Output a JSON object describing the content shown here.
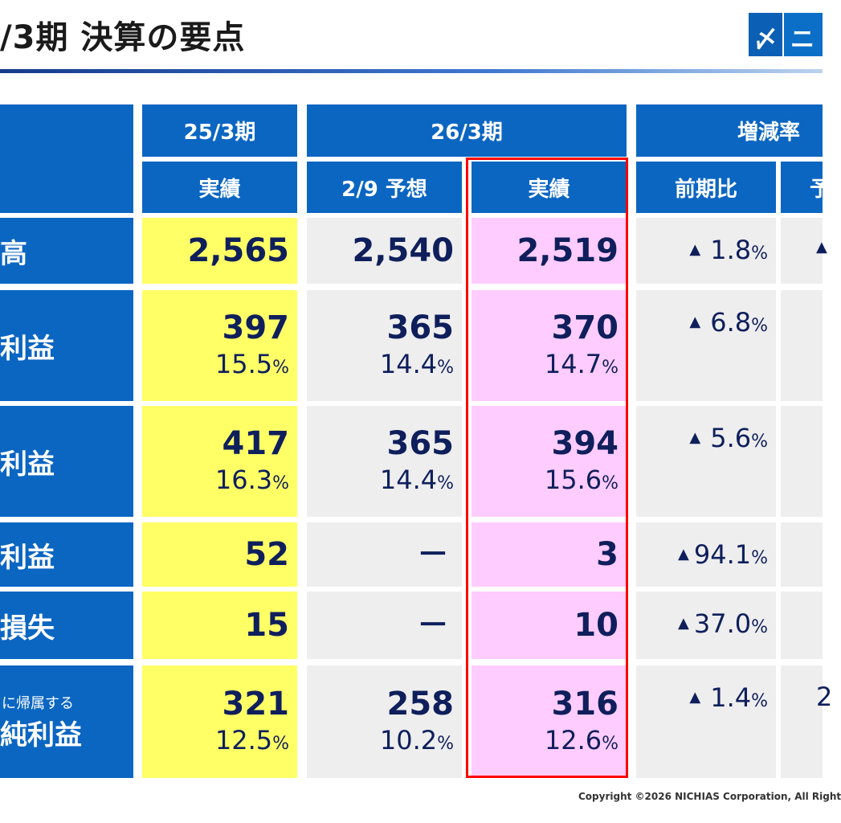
{
  "title": "/3期 決算の要点",
  "logo": {
    "glyph1": "〆",
    "glyph2": "ニ"
  },
  "headers": {
    "prev_year": "25/3期",
    "curr_year": "26/3期",
    "change": "増減率",
    "actual_prev": "実績",
    "forecast": "2/9 予想",
    "actual_curr": "実績",
    "vs_prev": "前期比",
    "vs_forecast": "予"
  },
  "rows": [
    {
      "label": "高",
      "label_small": "",
      "prev": "2,565",
      "prev_pct": "",
      "fc": "2,540",
      "fc_pct": "",
      "curr": "2,519",
      "curr_pct": "",
      "chg": "1.8",
      "chg2": "▲"
    },
    {
      "label": "利益",
      "label_small": "",
      "prev": "397",
      "prev_pct": "15.5",
      "fc": "365",
      "fc_pct": "14.4",
      "curr": "370",
      "curr_pct": "14.7",
      "chg": "6.8",
      "chg2": ""
    },
    {
      "label": "利益",
      "label_small": "",
      "prev": "417",
      "prev_pct": "16.3",
      "fc": "365",
      "fc_pct": "14.4",
      "curr": "394",
      "curr_pct": "15.6",
      "chg": "5.6",
      "chg2": ""
    },
    {
      "label": "利益",
      "label_small": "",
      "prev": "52",
      "prev_pct": "",
      "fc": "－",
      "fc_pct": "",
      "curr": "3",
      "curr_pct": "",
      "chg": "94.1",
      "chg2": ""
    },
    {
      "label": "損失",
      "label_small": "",
      "prev": "15",
      "prev_pct": "",
      "fc": "－",
      "fc_pct": "",
      "curr": "10",
      "curr_pct": "",
      "chg": "37.0",
      "chg2": ""
    },
    {
      "label": "純利益",
      "label_small": "に帰属する",
      "prev": "321",
      "prev_pct": "12.5",
      "fc": "258",
      "fc_pct": "10.2",
      "curr": "316",
      "curr_pct": "12.6",
      "chg": "1.4",
      "chg2": "2"
    }
  ],
  "pct_unit": "%",
  "triangle": "▲",
  "copyright": "Copyright ©2026 NICHIAS Corporation, All Right"
}
